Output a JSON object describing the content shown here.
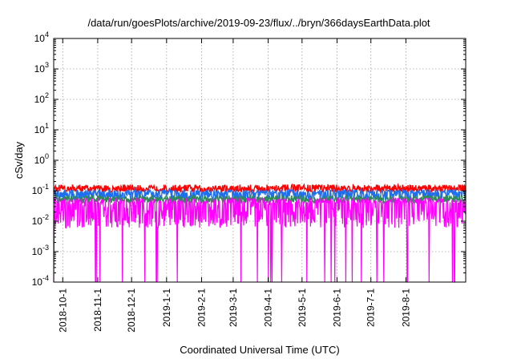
{
  "chart_data": {
    "type": "line",
    "title": "/data/run/goesPlots/archive/2019-09-23/flux/../bryn/366daysEarthData.plot",
    "xlabel": "Coordinated Universal Time (UTC)",
    "ylabel": "cSv/day",
    "yscale": "log",
    "ylim": [
      0.0001,
      10000
    ],
    "xlim": [
      "2018-09-23",
      "2019-09-23"
    ],
    "grid": true,
    "y_ticks": [
      {
        "base": "10",
        "exp": "-4",
        "value": 0.0001
      },
      {
        "base": "10",
        "exp": "-3",
        "value": 0.001
      },
      {
        "base": "10",
        "exp": "-2",
        "value": 0.01
      },
      {
        "base": "10",
        "exp": "-1",
        "value": 0.1
      },
      {
        "base": "10",
        "exp": "0",
        "value": 1
      },
      {
        "base": "10",
        "exp": "1",
        "value": 10
      },
      {
        "base": "10",
        "exp": "2",
        "value": 100
      },
      {
        "base": "10",
        "exp": "3",
        "value": 1000
      },
      {
        "base": "10",
        "exp": "4",
        "value": 10000
      }
    ],
    "x_ticks": [
      {
        "label": "2018-10-1",
        "date": "2018-10-01"
      },
      {
        "label": "2018-11-1",
        "date": "2018-11-01"
      },
      {
        "label": "2018-12-1",
        "date": "2018-12-01"
      },
      {
        "label": "2019-1-1",
        "date": "2019-01-01"
      },
      {
        "label": "2019-2-1",
        "date": "2019-02-01"
      },
      {
        "label": "2019-3-1",
        "date": "2019-03-01"
      },
      {
        "label": "2019-4-1",
        "date": "2019-04-01"
      },
      {
        "label": "2019-5-1",
        "date": "2019-05-01"
      },
      {
        "label": "2019-6-1",
        "date": "2019-06-01"
      },
      {
        "label": "2019-7-1",
        "date": "2019-07-01"
      },
      {
        "label": "2019-8-1",
        "date": "2019-08-01"
      }
    ],
    "series": [
      {
        "color": "#ff0000",
        "baseline": 0.12,
        "floor": 0.09,
        "peak": 0.16
      },
      {
        "color": "#1e6ff0",
        "baseline": 0.085,
        "floor": 0.05,
        "peak": 0.11
      },
      {
        "color": "#2e8b57",
        "baseline": 0.055,
        "floor": 0.04,
        "peak": 0.07
      },
      {
        "color": "#ff00ff",
        "baseline": 0.04,
        "floor": 0.006,
        "peak": 0.06,
        "dropouts_to": 0.0001
      }
    ]
  }
}
